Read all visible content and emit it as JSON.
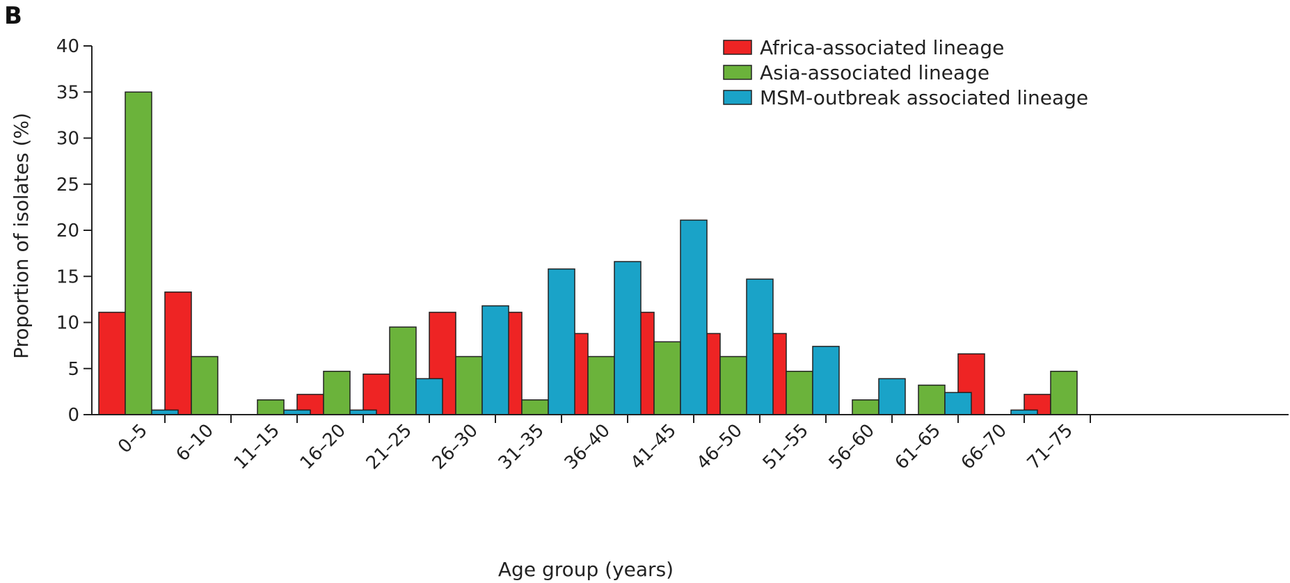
{
  "panel_label": "B",
  "chart_data": {
    "type": "bar",
    "title": "",
    "xlabel": "Age group (years)",
    "ylabel": "Proportion of isolates (%)",
    "ylim": [
      0,
      40
    ],
    "yticks": [
      0,
      5,
      10,
      15,
      20,
      25,
      30,
      35,
      40
    ],
    "grid": false,
    "legend": "top-right",
    "categories": [
      "0–5",
      "6–10",
      "11–15",
      "16–20",
      "21–25",
      "26–30",
      "31–35",
      "36–40",
      "41–45",
      "46–50",
      "51–55",
      "56–60",
      "61–65",
      "66–70",
      "71–75"
    ],
    "series": [
      {
        "name": "Africa-associated lineage",
        "color": "#ee2424",
        "values": [
          11.1,
          13.3,
          0,
          2.2,
          4.4,
          11.1,
          11.1,
          8.8,
          11.1,
          8.8,
          8.8,
          0,
          0,
          6.6,
          2.2
        ]
      },
      {
        "name": "Asia-associated lineage",
        "color": "#6bb33b",
        "values": [
          35,
          6.3,
          1.6,
          4.7,
          9.5,
          6.3,
          1.6,
          6.3,
          7.9,
          6.3,
          4.7,
          1.6,
          3.2,
          0,
          4.7
        ]
      },
      {
        "name": "MSM-outbreak associated lineage",
        "color": "#1aa3c8",
        "values": [
          0.5,
          0,
          0.5,
          0.5,
          3.9,
          11.8,
          15.8,
          16.6,
          21.1,
          14.7,
          7.4,
          3.9,
          2.4,
          0.5,
          0
        ]
      }
    ]
  }
}
